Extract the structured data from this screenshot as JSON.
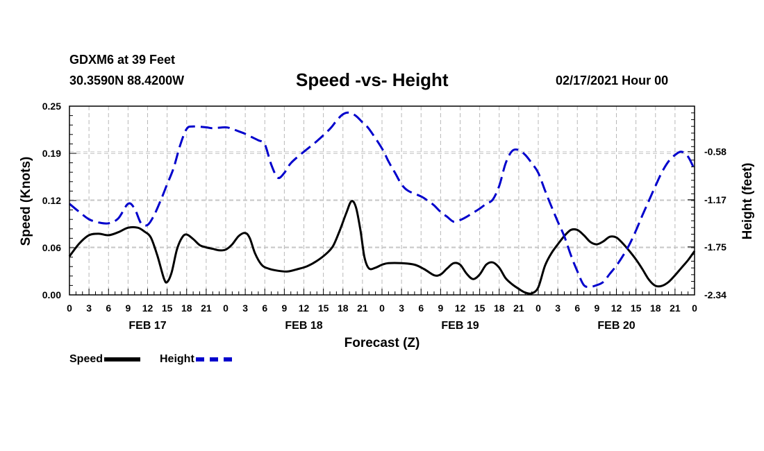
{
  "header": {
    "station": "GDXM6 at 39 Feet",
    "coords": "30.3590N 88.4200W",
    "title": "Speed -vs- Height",
    "datetime": "02/17/2021 Hour 00"
  },
  "legend": {
    "speed_label": "Speed",
    "height_label": "Height"
  },
  "chart_data": {
    "type": "line",
    "title": "Speed -vs- Height",
    "xlabel": "Forecast (Z)",
    "ylabel_left": "Speed (Knots)",
    "ylabel_right": "Height (feet)",
    "x_unit": "hours from 02/17/2021 00Z",
    "xlim": [
      0,
      96
    ],
    "ylim_left": [
      0,
      0.25
    ],
    "ylim_right": [
      -2.34,
      -0.02
    ],
    "yticks_left": [
      "0.00",
      "0.06",
      "0.12",
      "0.19",
      "0.25"
    ],
    "yticks_left_values": [
      0,
      0.0625,
      0.125,
      0.1875,
      0.25
    ],
    "yticks_right": [
      "-2.34",
      "-1.75",
      "-1.17",
      "-0.58"
    ],
    "yticks_right_values": [
      -2.34,
      -1.75,
      -1.17,
      -0.58
    ],
    "xticks": [
      "0",
      "3",
      "6",
      "9",
      "12",
      "15",
      "18",
      "21",
      "0",
      "3",
      "6",
      "9",
      "12",
      "15",
      "18",
      "21",
      "0",
      "3",
      "6",
      "9",
      "12",
      "15",
      "18",
      "21",
      "0",
      "3",
      "6",
      "9",
      "12",
      "15",
      "18",
      "21",
      "0"
    ],
    "day_labels": [
      {
        "label": "FEB 17",
        "hour": 12
      },
      {
        "label": "FEB 18",
        "hour": 36
      },
      {
        "label": "FEB 19",
        "hour": 60
      },
      {
        "label": "FEB 20",
        "hour": 84
      }
    ],
    "grid": true,
    "series": [
      {
        "name": "Speed",
        "axis": "left",
        "color": "#000000",
        "style": "solid",
        "points": [
          [
            0,
            0.051
          ],
          [
            1.5,
            0.068
          ],
          [
            3,
            0.079
          ],
          [
            4.5,
            0.081
          ],
          [
            6,
            0.079
          ],
          [
            7.5,
            0.083
          ],
          [
            9,
            0.089
          ],
          [
            10.5,
            0.089
          ],
          [
            11.5,
            0.084
          ],
          [
            12.5,
            0.076
          ],
          [
            13.5,
            0.052
          ],
          [
            14.5,
            0.022
          ],
          [
            15,
            0.017
          ],
          [
            15.7,
            0.03
          ],
          [
            16.5,
            0.06
          ],
          [
            17.3,
            0.076
          ],
          [
            18,
            0.08
          ],
          [
            19,
            0.074
          ],
          [
            20,
            0.066
          ],
          [
            21,
            0.063
          ],
          [
            22,
            0.061
          ],
          [
            23,
            0.059
          ],
          [
            24,
            0.06
          ],
          [
            25,
            0.067
          ],
          [
            26,
            0.078
          ],
          [
            27,
            0.082
          ],
          [
            27.7,
            0.075
          ],
          [
            28.5,
            0.055
          ],
          [
            29.5,
            0.04
          ],
          [
            30.5,
            0.035
          ],
          [
            32,
            0.032
          ],
          [
            33.5,
            0.031
          ],
          [
            35,
            0.034
          ],
          [
            36.5,
            0.038
          ],
          [
            38,
            0.045
          ],
          [
            39.5,
            0.055
          ],
          [
            40.5,
            0.065
          ],
          [
            41.5,
            0.085
          ],
          [
            42.5,
            0.108
          ],
          [
            43.3,
            0.124
          ],
          [
            44,
            0.116
          ],
          [
            44.7,
            0.085
          ],
          [
            45.3,
            0.05
          ],
          [
            46,
            0.035
          ],
          [
            47,
            0.036
          ],
          [
            48,
            0.04
          ],
          [
            49,
            0.042
          ],
          [
            51,
            0.042
          ],
          [
            53,
            0.04
          ],
          [
            54.5,
            0.034
          ],
          [
            56,
            0.026
          ],
          [
            57,
            0.027
          ],
          [
            58,
            0.035
          ],
          [
            59,
            0.042
          ],
          [
            60,
            0.04
          ],
          [
            61,
            0.028
          ],
          [
            62,
            0.021
          ],
          [
            63,
            0.027
          ],
          [
            64,
            0.04
          ],
          [
            65,
            0.043
          ],
          [
            66,
            0.036
          ],
          [
            67,
            0.022
          ],
          [
            68,
            0.014
          ],
          [
            69,
            0.008
          ],
          [
            70,
            0.003
          ],
          [
            71,
            0.002
          ],
          [
            72,
            0.01
          ],
          [
            73,
            0.038
          ],
          [
            74,
            0.055
          ],
          [
            75,
            0.067
          ],
          [
            76,
            0.078
          ],
          [
            77,
            0.086
          ],
          [
            78,
            0.086
          ],
          [
            79,
            0.079
          ],
          [
            80,
            0.07
          ],
          [
            81,
            0.067
          ],
          [
            82,
            0.071
          ],
          [
            83,
            0.077
          ],
          [
            84,
            0.076
          ],
          [
            85,
            0.068
          ],
          [
            86,
            0.058
          ],
          [
            87,
            0.047
          ],
          [
            88,
            0.034
          ],
          [
            89,
            0.02
          ],
          [
            90,
            0.012
          ],
          [
            91,
            0.012
          ],
          [
            92,
            0.017
          ],
          [
            93,
            0.026
          ],
          [
            94,
            0.036
          ],
          [
            95,
            0.046
          ],
          [
            96,
            0.058
          ]
        ]
      },
      {
        "name": "Height",
        "axis": "right",
        "color": "#0000cc",
        "style": "dashed",
        "points": [
          [
            0,
            -1.22
          ],
          [
            1.5,
            -1.32
          ],
          [
            3,
            -1.41
          ],
          [
            4.5,
            -1.45
          ],
          [
            6,
            -1.46
          ],
          [
            7.5,
            -1.4
          ],
          [
            9,
            -1.22
          ],
          [
            10,
            -1.28
          ],
          [
            11,
            -1.46
          ],
          [
            12,
            -1.48
          ],
          [
            13,
            -1.36
          ],
          [
            14,
            -1.18
          ],
          [
            15,
            -0.98
          ],
          [
            16,
            -0.78
          ],
          [
            17,
            -0.5
          ],
          [
            18,
            -0.3
          ],
          [
            19,
            -0.27
          ],
          [
            21,
            -0.28
          ],
          [
            22,
            -0.29
          ],
          [
            24,
            -0.28
          ],
          [
            25,
            -0.3
          ],
          [
            26,
            -0.33
          ],
          [
            27,
            -0.36
          ],
          [
            28,
            -0.4
          ],
          [
            29,
            -0.44
          ],
          [
            30,
            -0.49
          ],
          [
            31,
            -0.74
          ],
          [
            32,
            -0.9
          ],
          [
            33,
            -0.84
          ],
          [
            34,
            -0.72
          ],
          [
            36,
            -0.58
          ],
          [
            38,
            -0.45
          ],
          [
            40,
            -0.3
          ],
          [
            41,
            -0.2
          ],
          [
            42,
            -0.12
          ],
          [
            43,
            -0.1
          ],
          [
            44,
            -0.14
          ],
          [
            45,
            -0.22
          ],
          [
            46,
            -0.3
          ],
          [
            48,
            -0.54
          ],
          [
            49,
            -0.7
          ],
          [
            50,
            -0.84
          ],
          [
            51,
            -0.98
          ],
          [
            52,
            -1.06
          ],
          [
            54,
            -1.13
          ],
          [
            55,
            -1.18
          ],
          [
            56,
            -1.24
          ],
          [
            57,
            -1.32
          ],
          [
            58,
            -1.38
          ],
          [
            59,
            -1.44
          ],
          [
            60,
            -1.42
          ],
          [
            61,
            -1.38
          ],
          [
            62,
            -1.33
          ],
          [
            63,
            -1.28
          ],
          [
            64,
            -1.22
          ],
          [
            65,
            -1.17
          ],
          [
            66,
            -1.0
          ],
          [
            67,
            -0.72
          ],
          [
            68,
            -0.57
          ],
          [
            69,
            -0.56
          ],
          [
            70,
            -0.62
          ],
          [
            71,
            -0.72
          ],
          [
            72,
            -0.84
          ],
          [
            73,
            -1.05
          ],
          [
            74,
            -1.25
          ],
          [
            75,
            -1.44
          ],
          [
            76,
            -1.62
          ],
          [
            77,
            -1.85
          ],
          [
            78,
            -2.05
          ],
          [
            79,
            -2.22
          ],
          [
            80,
            -2.24
          ],
          [
            81,
            -2.22
          ],
          [
            82,
            -2.18
          ],
          [
            83,
            -2.08
          ],
          [
            84,
            -1.98
          ],
          [
            85,
            -1.86
          ],
          [
            86,
            -1.72
          ],
          [
            87,
            -1.55
          ],
          [
            88,
            -1.36
          ],
          [
            89,
            -1.18
          ],
          [
            90,
            -1.0
          ],
          [
            91,
            -0.83
          ],
          [
            92,
            -0.7
          ],
          [
            93,
            -0.62
          ],
          [
            94,
            -0.58
          ],
          [
            95,
            -0.64
          ],
          [
            96,
            -0.8
          ]
        ]
      }
    ]
  }
}
